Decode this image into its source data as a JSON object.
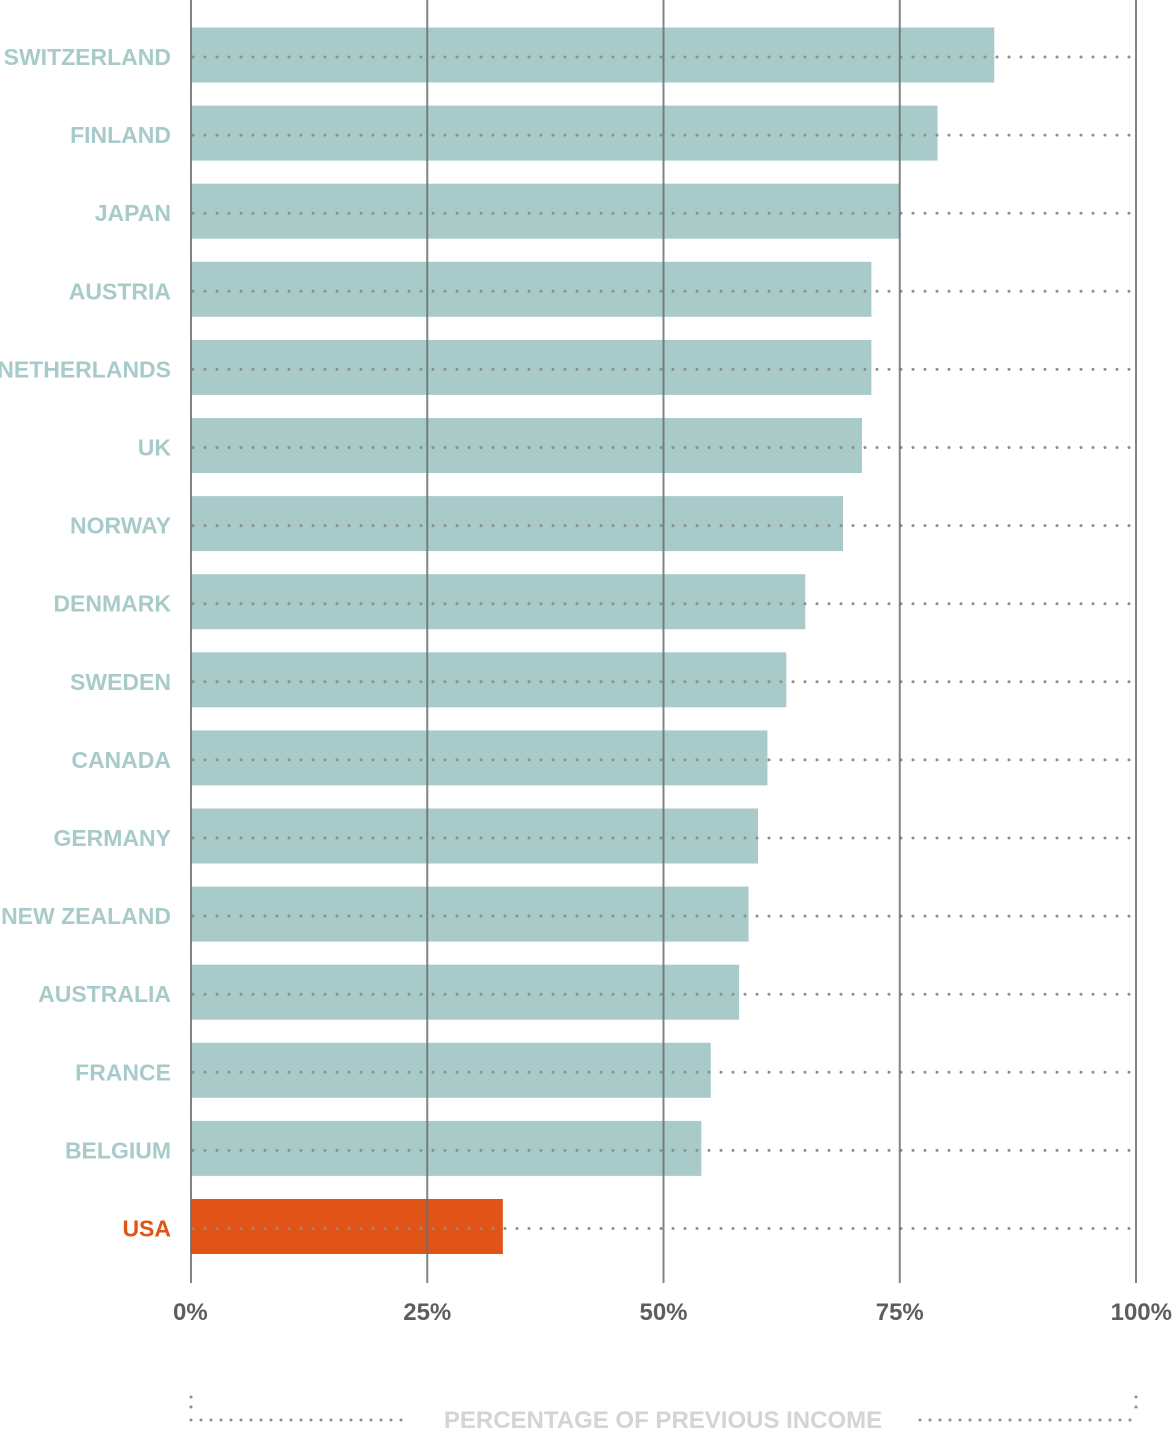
{
  "chart_data": {
    "type": "bar",
    "orientation": "horizontal",
    "categories": [
      "SWITZERLAND",
      "FINLAND",
      "JAPAN",
      "AUSTRIA",
      "NETHERLANDS",
      "UK",
      "NORWAY",
      "DENMARK",
      "SWEDEN",
      "CANADA",
      "GERMANY",
      "NEW ZEALAND",
      "AUSTRALIA",
      "FRANCE",
      "BELGIUM",
      "USA"
    ],
    "values": [
      85,
      79,
      75,
      72,
      72,
      71,
      69,
      65,
      63,
      61,
      60,
      59,
      58,
      55,
      54,
      33
    ],
    "highlight": "USA",
    "xlabel": "PERCENTAGE OF PREVIOUS INCOME",
    "xlim": [
      0,
      100
    ],
    "xticks": [
      0,
      25,
      50,
      75,
      100
    ],
    "xtick_labels": [
      "0%",
      "25%",
      "50%",
      "75%",
      "100%"
    ],
    "grid": true,
    "colors": {
      "bar": "#a8cbca",
      "highlight": "#e05417",
      "label": "#a8cbca",
      "highlight_label": "#e05417",
      "gridline": "#6b6f72",
      "dots": "#8a8f92",
      "tick_text": "#5a5f62",
      "xlabel_text": "#d2d5d6"
    }
  }
}
